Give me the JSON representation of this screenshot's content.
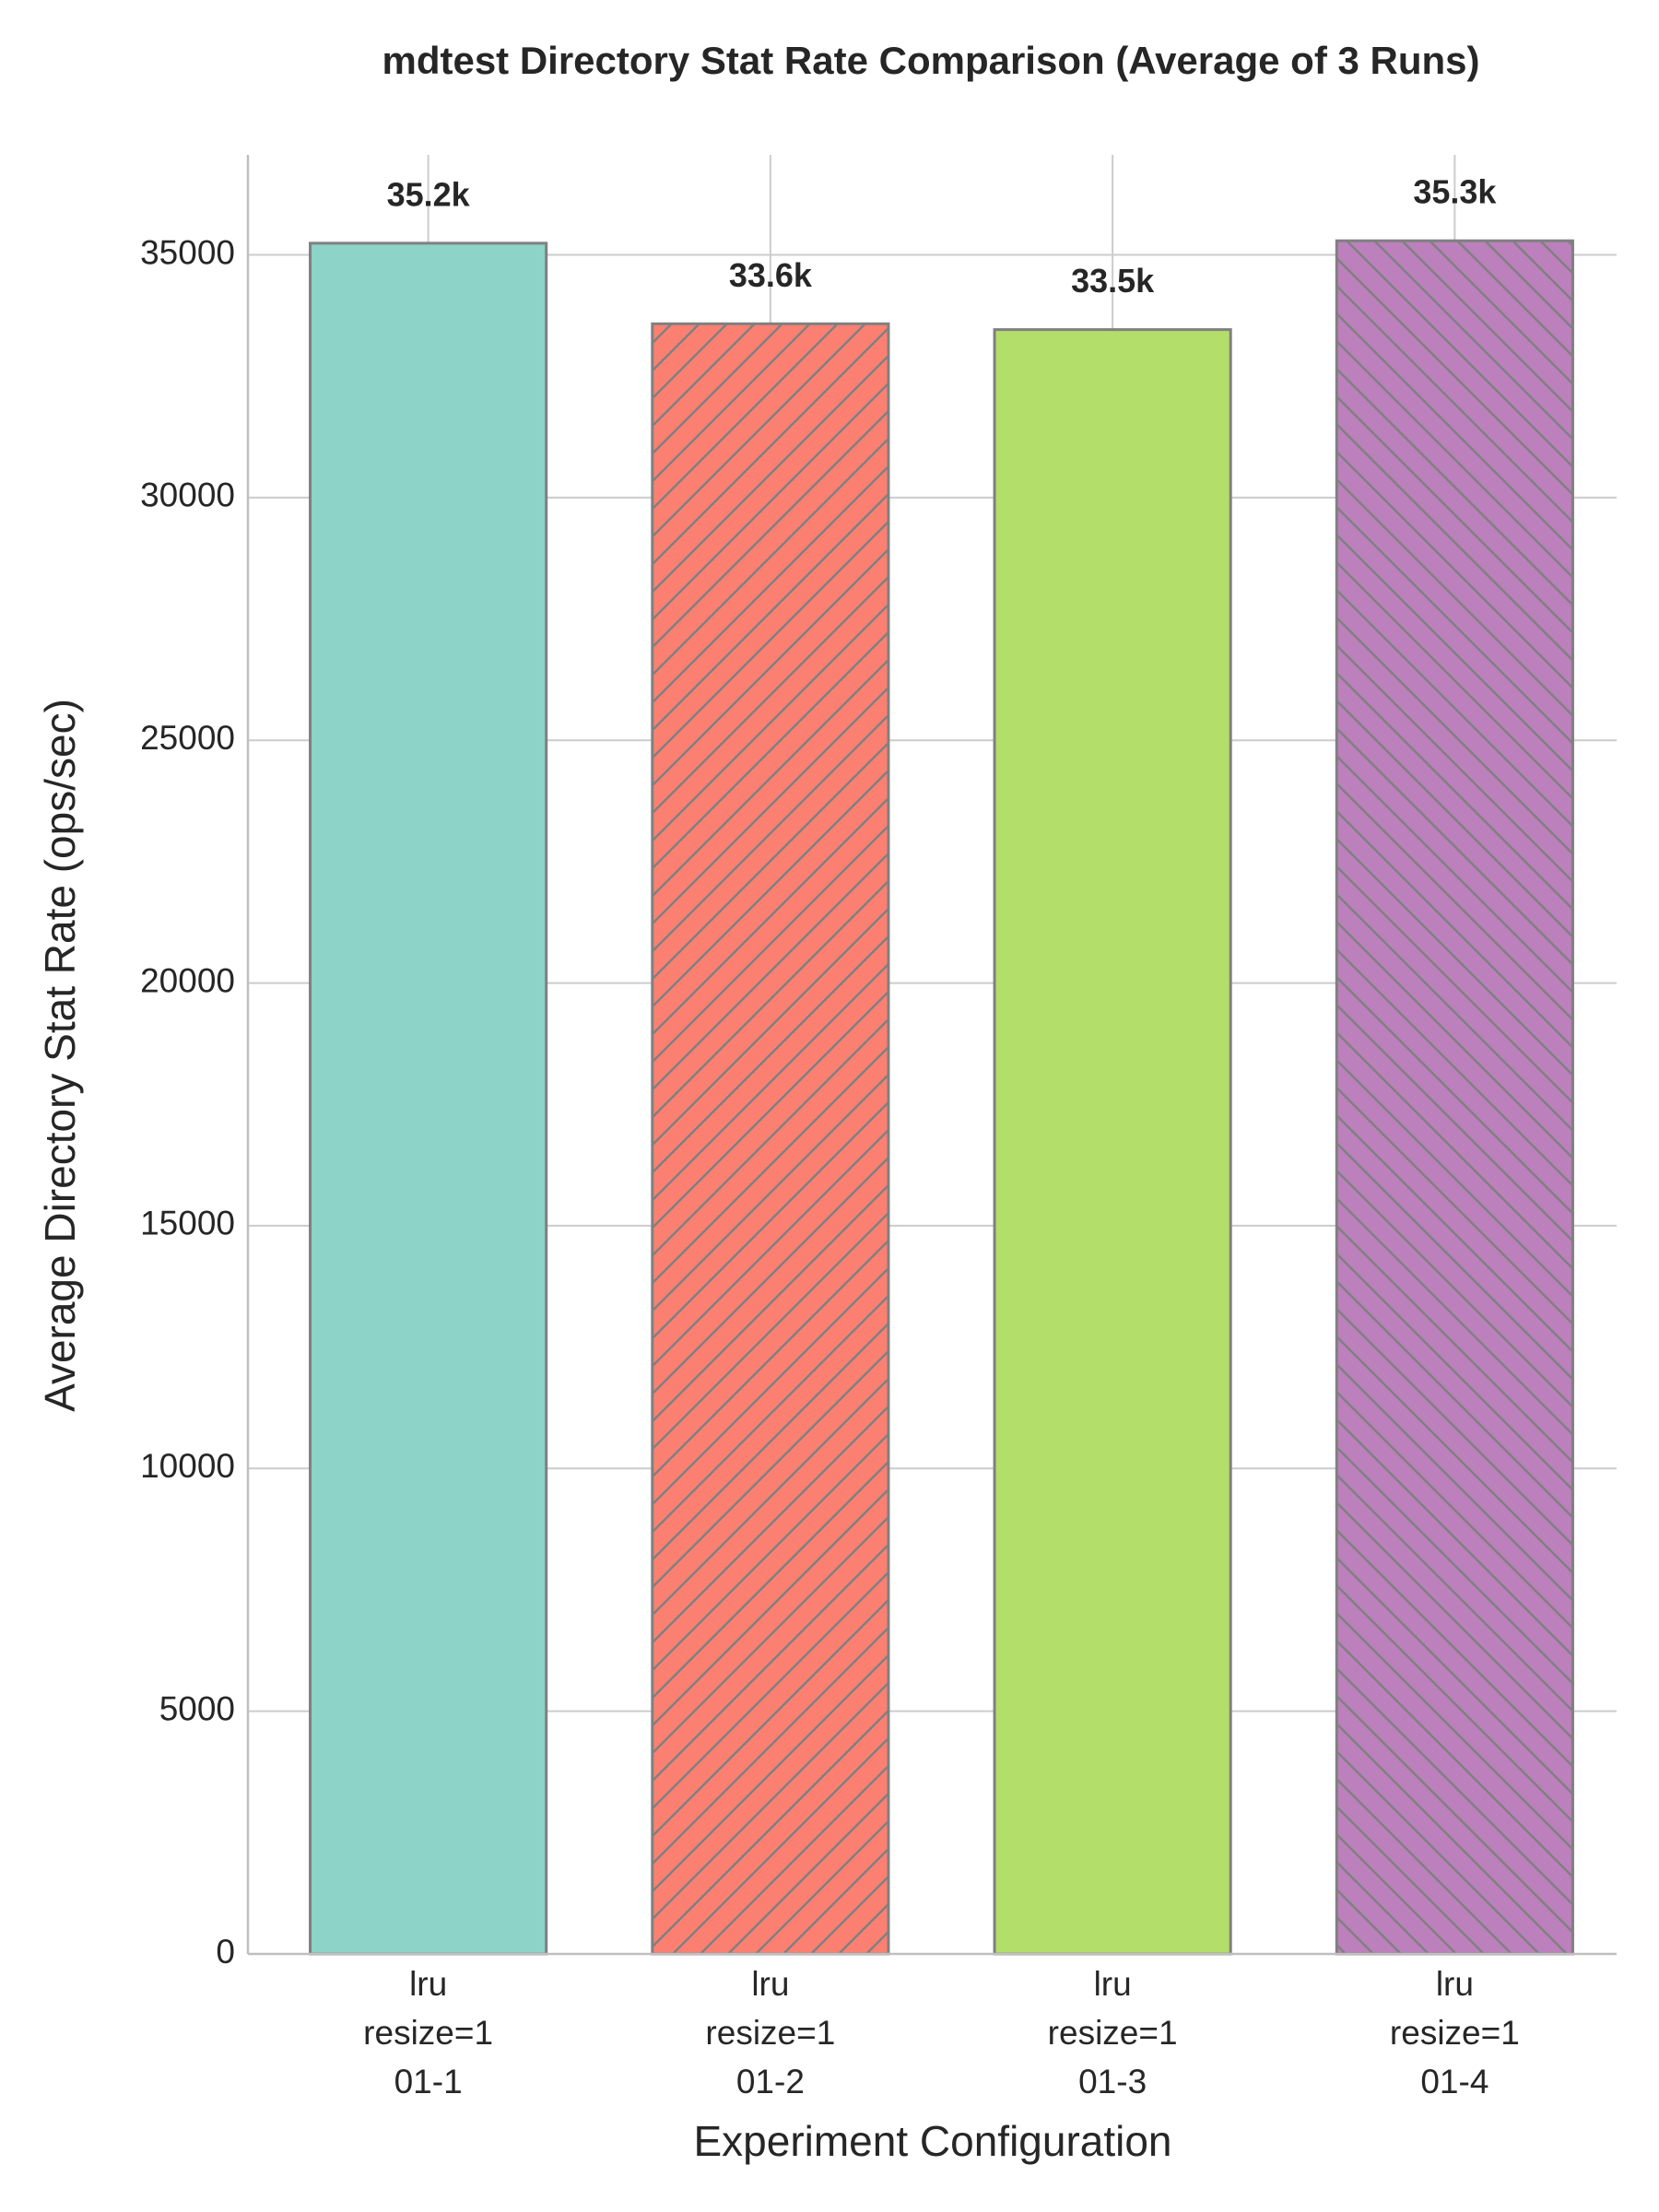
{
  "chart_data": {
    "type": "bar",
    "title": "mdtest Directory Stat Rate Comparison (Average of 3 Runs)",
    "xlabel": "Experiment Configuration",
    "ylabel": "Average Directory Stat Rate (ops/sec)",
    "categories": [
      [
        "lru",
        "resize=1",
        "01-1"
      ],
      [
        "lru",
        "resize=1",
        "01-2"
      ],
      [
        "lru",
        "resize=1",
        "01-3"
      ],
      [
        "lru",
        "resize=1",
        "01-4"
      ]
    ],
    "values": [
      35240,
      33580,
      33460,
      35290
    ],
    "value_labels": [
      "35.2k",
      "33.6k",
      "33.5k",
      "35.3k"
    ],
    "colors": [
      "#8dd3c7",
      "#fb8072",
      "#b3de69",
      "#bc80bd"
    ],
    "hatches": [
      null,
      "//",
      null,
      "\\\\"
    ],
    "edgecolor": "#808080",
    "ylim": [
      0,
      37060
    ],
    "yticks": [
      0,
      5000,
      10000,
      15000,
      20000,
      25000,
      30000,
      35000
    ],
    "grid": true
  }
}
